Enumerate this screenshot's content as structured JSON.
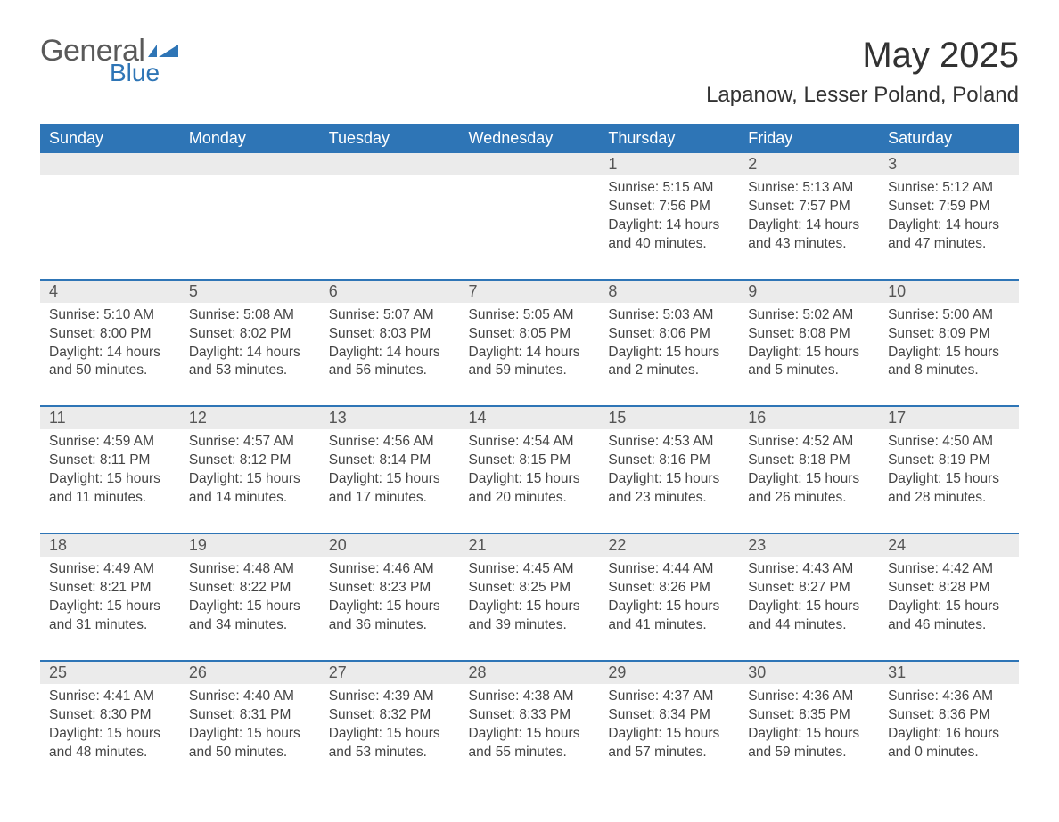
{
  "brand": {
    "word1": "General",
    "word2": "Blue",
    "flag_color": "#2e75b6"
  },
  "title": "May 2025",
  "location": "Lapanow, Lesser Poland, Poland",
  "colors": {
    "header_bg": "#2e75b6",
    "header_text": "#ffffff",
    "daynum_bg": "#ebebeb",
    "row_divider": "#2e75b6",
    "body_text": "#444444",
    "page_bg": "#ffffff"
  },
  "typography": {
    "title_fontsize": 40,
    "location_fontsize": 24,
    "header_fontsize": 18,
    "daynum_fontsize": 18,
    "content_fontsize": 15.5,
    "font_family": "Arial"
  },
  "weekdays": [
    "Sunday",
    "Monday",
    "Tuesday",
    "Wednesday",
    "Thursday",
    "Friday",
    "Saturday"
  ],
  "weeks": [
    [
      null,
      null,
      null,
      null,
      {
        "n": "1",
        "sunrise": "5:15 AM",
        "sunset": "7:56 PM",
        "daylight": "14 hours and 40 minutes."
      },
      {
        "n": "2",
        "sunrise": "5:13 AM",
        "sunset": "7:57 PM",
        "daylight": "14 hours and 43 minutes."
      },
      {
        "n": "3",
        "sunrise": "5:12 AM",
        "sunset": "7:59 PM",
        "daylight": "14 hours and 47 minutes."
      }
    ],
    [
      {
        "n": "4",
        "sunrise": "5:10 AM",
        "sunset": "8:00 PM",
        "daylight": "14 hours and 50 minutes."
      },
      {
        "n": "5",
        "sunrise": "5:08 AM",
        "sunset": "8:02 PM",
        "daylight": "14 hours and 53 minutes."
      },
      {
        "n": "6",
        "sunrise": "5:07 AM",
        "sunset": "8:03 PM",
        "daylight": "14 hours and 56 minutes."
      },
      {
        "n": "7",
        "sunrise": "5:05 AM",
        "sunset": "8:05 PM",
        "daylight": "14 hours and 59 minutes."
      },
      {
        "n": "8",
        "sunrise": "5:03 AM",
        "sunset": "8:06 PM",
        "daylight": "15 hours and 2 minutes."
      },
      {
        "n": "9",
        "sunrise": "5:02 AM",
        "sunset": "8:08 PM",
        "daylight": "15 hours and 5 minutes."
      },
      {
        "n": "10",
        "sunrise": "5:00 AM",
        "sunset": "8:09 PM",
        "daylight": "15 hours and 8 minutes."
      }
    ],
    [
      {
        "n": "11",
        "sunrise": "4:59 AM",
        "sunset": "8:11 PM",
        "daylight": "15 hours and 11 minutes."
      },
      {
        "n": "12",
        "sunrise": "4:57 AM",
        "sunset": "8:12 PM",
        "daylight": "15 hours and 14 minutes."
      },
      {
        "n": "13",
        "sunrise": "4:56 AM",
        "sunset": "8:14 PM",
        "daylight": "15 hours and 17 minutes."
      },
      {
        "n": "14",
        "sunrise": "4:54 AM",
        "sunset": "8:15 PM",
        "daylight": "15 hours and 20 minutes."
      },
      {
        "n": "15",
        "sunrise": "4:53 AM",
        "sunset": "8:16 PM",
        "daylight": "15 hours and 23 minutes."
      },
      {
        "n": "16",
        "sunrise": "4:52 AM",
        "sunset": "8:18 PM",
        "daylight": "15 hours and 26 minutes."
      },
      {
        "n": "17",
        "sunrise": "4:50 AM",
        "sunset": "8:19 PM",
        "daylight": "15 hours and 28 minutes."
      }
    ],
    [
      {
        "n": "18",
        "sunrise": "4:49 AM",
        "sunset": "8:21 PM",
        "daylight": "15 hours and 31 minutes."
      },
      {
        "n": "19",
        "sunrise": "4:48 AM",
        "sunset": "8:22 PM",
        "daylight": "15 hours and 34 minutes."
      },
      {
        "n": "20",
        "sunrise": "4:46 AM",
        "sunset": "8:23 PM",
        "daylight": "15 hours and 36 minutes."
      },
      {
        "n": "21",
        "sunrise": "4:45 AM",
        "sunset": "8:25 PM",
        "daylight": "15 hours and 39 minutes."
      },
      {
        "n": "22",
        "sunrise": "4:44 AM",
        "sunset": "8:26 PM",
        "daylight": "15 hours and 41 minutes."
      },
      {
        "n": "23",
        "sunrise": "4:43 AM",
        "sunset": "8:27 PM",
        "daylight": "15 hours and 44 minutes."
      },
      {
        "n": "24",
        "sunrise": "4:42 AM",
        "sunset": "8:28 PM",
        "daylight": "15 hours and 46 minutes."
      }
    ],
    [
      {
        "n": "25",
        "sunrise": "4:41 AM",
        "sunset": "8:30 PM",
        "daylight": "15 hours and 48 minutes."
      },
      {
        "n": "26",
        "sunrise": "4:40 AM",
        "sunset": "8:31 PM",
        "daylight": "15 hours and 50 minutes."
      },
      {
        "n": "27",
        "sunrise": "4:39 AM",
        "sunset": "8:32 PM",
        "daylight": "15 hours and 53 minutes."
      },
      {
        "n": "28",
        "sunrise": "4:38 AM",
        "sunset": "8:33 PM",
        "daylight": "15 hours and 55 minutes."
      },
      {
        "n": "29",
        "sunrise": "4:37 AM",
        "sunset": "8:34 PM",
        "daylight": "15 hours and 57 minutes."
      },
      {
        "n": "30",
        "sunrise": "4:36 AM",
        "sunset": "8:35 PM",
        "daylight": "15 hours and 59 minutes."
      },
      {
        "n": "31",
        "sunrise": "4:36 AM",
        "sunset": "8:36 PM",
        "daylight": "16 hours and 0 minutes."
      }
    ]
  ],
  "labels": {
    "sunrise": "Sunrise:",
    "sunset": "Sunset:",
    "daylight": "Daylight:"
  }
}
